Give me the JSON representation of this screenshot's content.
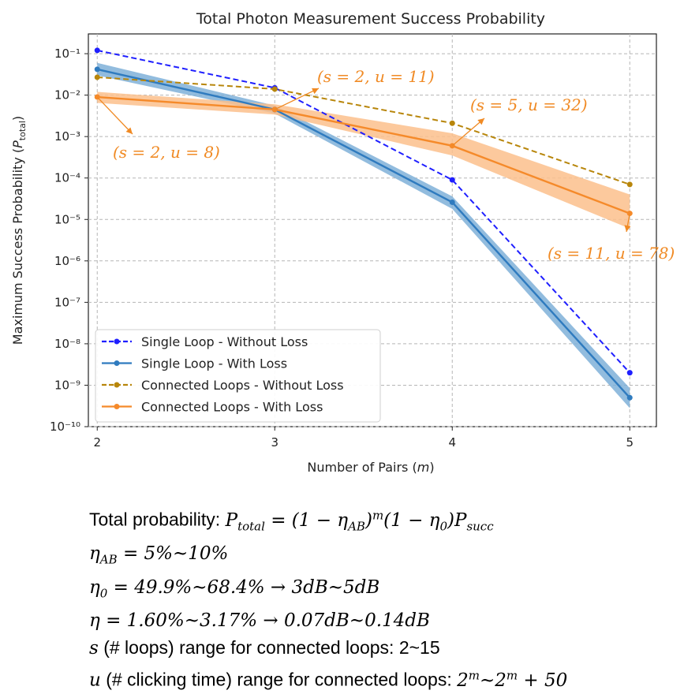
{
  "chart_data": {
    "type": "line",
    "title": "Total Photon Measurement Success Probability",
    "xlabel": "Number of Pairs (m)",
    "ylabel": "Maximum Success Probability (P_total)",
    "x": [
      2,
      3,
      4,
      5
    ],
    "x_ticks": [
      "2",
      "3",
      "4",
      "5"
    ],
    "xlim": [
      1.95,
      5.15
    ],
    "y_scale": "log",
    "ylim": [
      1e-10,
      0.3
    ],
    "y_ticks": [
      {
        "value": 0.1,
        "label": "10⁻¹"
      },
      {
        "value": 0.01,
        "label": "10⁻²"
      },
      {
        "value": 0.001,
        "label": "10⁻³"
      },
      {
        "value": 0.0001,
        "label": "10⁻⁴"
      },
      {
        "value": 1e-05,
        "label": "10⁻⁵"
      },
      {
        "value": 1e-06,
        "label": "10⁻⁶"
      },
      {
        "value": 1e-07,
        "label": "10⁻⁷"
      },
      {
        "value": 1e-08,
        "label": "10⁻⁸"
      },
      {
        "value": 1e-09,
        "label": "10⁻⁹"
      },
      {
        "value": 1e-10,
        "label": "10⁻¹⁰"
      }
    ],
    "grid": true,
    "legend_placement": "lower-left",
    "series": [
      {
        "name": "Single Loop - Without Loss",
        "color": "#1f1fff",
        "style": "dashed",
        "values": [
          0.12,
          0.015,
          9e-05,
          2e-09
        ]
      },
      {
        "name": "Single Loop - With Loss",
        "color": "#2f7bbf",
        "style": "solid",
        "values": [
          0.042,
          0.0045,
          2.6e-05,
          5e-10
        ],
        "band_low": [
          0.03,
          0.0036,
          1.8e-05,
          2.8e-10
        ],
        "band_high": [
          0.06,
          0.0056,
          3.6e-05,
          8.5e-10
        ],
        "band_color": "#7fb0d8"
      },
      {
        "name": "Connected Loops - Without Loss",
        "color": "#b8860b",
        "style": "dashed",
        "values": [
          0.027,
          0.014,
          0.0021,
          7e-05
        ]
      },
      {
        "name": "Connected Loops - With Loss",
        "color": "#f58a2a",
        "style": "solid",
        "values": [
          0.009,
          0.0045,
          0.0006,
          1.4e-05
        ],
        "band_low": [
          0.0065,
          0.0034,
          0.00035,
          6e-06
        ],
        "band_high": [
          0.012,
          0.006,
          0.0012,
          4e-05
        ],
        "band_color": "#fbbf8c"
      }
    ],
    "annotations": [
      {
        "text": "(s = 2, u = 8)",
        "point": [
          2,
          0.009
        ]
      },
      {
        "text": "(s = 2, u = 11)",
        "point": [
          3,
          0.0045
        ]
      },
      {
        "text": "(s = 5, u = 32)",
        "point": [
          4,
          0.0006
        ]
      },
      {
        "text": "(s = 11, u = 78)",
        "point": [
          5,
          1.4e-05
        ]
      }
    ]
  },
  "notes": [
    "Total probability: P_total = (1 − η_AB)^m (1 − η_0) P_succ",
    "η_AB = 5%~10%",
    "η_0 = 49.9%~68.4% → 3dB~5dB",
    "η = 1.60%~3.17% → 0.07dB~0.14dB",
    "s (# loops) range for connected loops: 2~15",
    "u (# clicking time) range for connected loops: 2^m~2^m + 50"
  ]
}
